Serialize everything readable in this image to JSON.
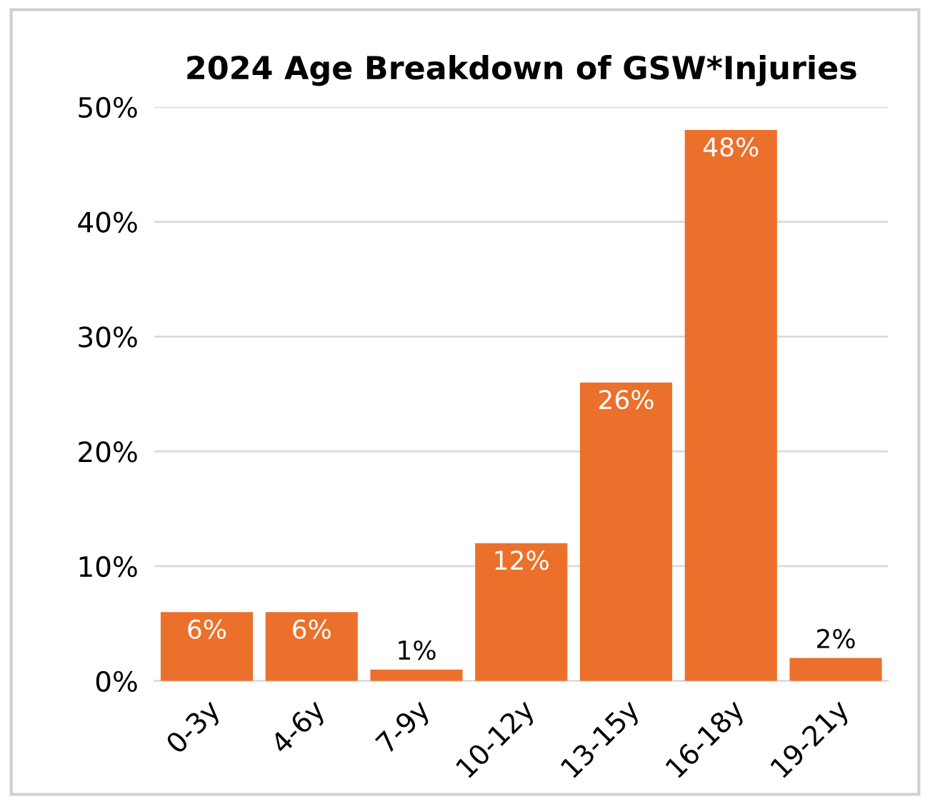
{
  "chart_data": {
    "type": "bar",
    "title": "2024 Age Breakdown of GSW*Injuries",
    "categories": [
      "0-3y",
      "4-6y",
      "7-9y",
      "10-12y",
      "13-15y",
      "16-18y",
      "19-21y"
    ],
    "values": [
      6,
      6,
      1,
      12,
      26,
      48,
      2
    ],
    "value_labels": [
      "6%",
      "6%",
      "1%",
      "12%",
      "26%",
      "48%",
      "2%"
    ],
    "color": "#eb702b",
    "ylim": [
      0,
      50
    ],
    "yticks": [
      {
        "value": 0,
        "label": "0%"
      },
      {
        "value": 10,
        "label": "10%"
      },
      {
        "value": 20,
        "label": "20%"
      },
      {
        "value": 30,
        "label": "30%"
      },
      {
        "value": 40,
        "label": "40%"
      },
      {
        "value": 50,
        "label": "50%"
      }
    ],
    "grid": "y"
  }
}
